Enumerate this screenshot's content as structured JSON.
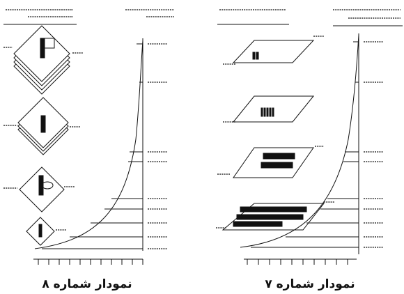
{
  "figures": [
    {
      "caption": "نمودار شماره ۸"
    },
    {
      "caption": "نمودار شماره ۷"
    }
  ]
}
